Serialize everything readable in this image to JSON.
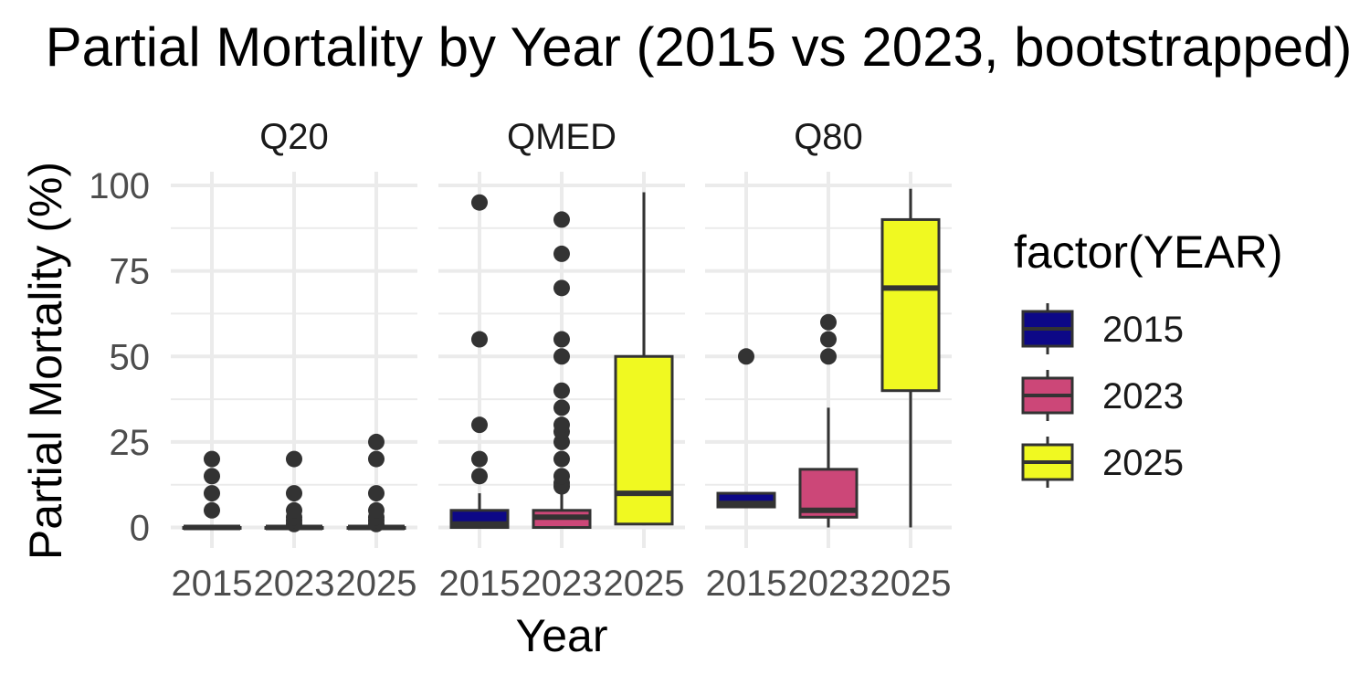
{
  "chart_data": {
    "type": "boxplot",
    "title": "Partial Mortality by Year (2015 vs 2023, bootstrapped)",
    "xlabel": "Year",
    "ylabel": "Partial Mortality (%)",
    "ylim": [
      -6,
      104
    ],
    "y_ticks": [
      0,
      25,
      50,
      75,
      100
    ],
    "y_tick_labels": [
      "0",
      "25",
      "50",
      "75",
      "100"
    ],
    "grid": true,
    "categories": [
      "2015",
      "2023",
      "2025"
    ],
    "legend": {
      "title": "factor(YEAR)",
      "position": "right",
      "entries": [
        {
          "label": "2015",
          "color": "#0d0887"
        },
        {
          "label": "2023",
          "color": "#cc4778"
        },
        {
          "label": "2025",
          "color": "#f0f921"
        }
      ]
    },
    "panels": [
      {
        "name": "Q20",
        "boxes": [
          {
            "year": "2015",
            "lower_whisker": 0,
            "q1": 0,
            "median": 0,
            "q3": 0,
            "upper_whisker": 0,
            "outliers": [
              5,
              10,
              15,
              20
            ]
          },
          {
            "year": "2023",
            "lower_whisker": 0,
            "q1": 0,
            "median": 0,
            "q3": 0,
            "upper_whisker": 0,
            "outliers": [
              1,
              2,
              3,
              5,
              10,
              20
            ]
          },
          {
            "year": "2025",
            "lower_whisker": 0,
            "q1": 0,
            "median": 0,
            "q3": 0,
            "upper_whisker": 0,
            "outliers": [
              1,
              2,
              3,
              5,
              10,
              20,
              25
            ]
          }
        ]
      },
      {
        "name": "QMED",
        "boxes": [
          {
            "year": "2015",
            "lower_whisker": 0,
            "q1": 0,
            "median": 1,
            "q3": 5,
            "upper_whisker": 10,
            "outliers": [
              15,
              20,
              30,
              55,
              95
            ]
          },
          {
            "year": "2023",
            "lower_whisker": 0,
            "q1": 0,
            "median": 3,
            "q3": 5,
            "upper_whisker": 10,
            "outliers": [
              12,
              13,
              15,
              20,
              25,
              28,
              30,
              35,
              40,
              50,
              55,
              70,
              80,
              90
            ]
          },
          {
            "year": "2025",
            "lower_whisker": 1,
            "q1": 1,
            "median": 10,
            "q3": 50,
            "upper_whisker": 98,
            "outliers": []
          }
        ]
      },
      {
        "name": "Q80",
        "boxes": [
          {
            "year": "2015",
            "lower_whisker": 6,
            "q1": 6,
            "median": 7,
            "q3": 10,
            "upper_whisker": 10,
            "outliers": [
              50
            ]
          },
          {
            "year": "2023",
            "lower_whisker": 0,
            "q1": 3,
            "median": 5,
            "q3": 17,
            "upper_whisker": 35,
            "outliers": [
              50,
              55,
              60
            ]
          },
          {
            "year": "2025",
            "lower_whisker": 0,
            "q1": 40,
            "median": 70,
            "q3": 90,
            "upper_whisker": 99,
            "outliers": []
          }
        ]
      }
    ]
  }
}
